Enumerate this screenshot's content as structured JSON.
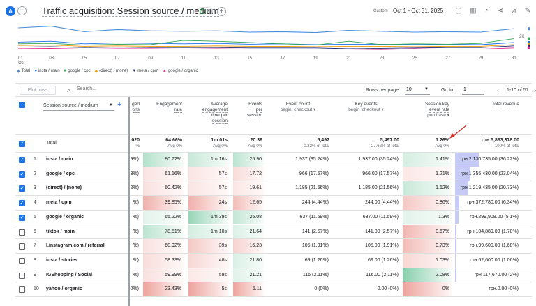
{
  "header": {
    "avatar": "A",
    "title": "Traffic acquisition: Session source / medium",
    "date_label": "Custom",
    "date_range": "Oct 1 - Oct 31, 2025"
  },
  "chart_data": {
    "type": "line",
    "x": [
      "01 Oct",
      "03",
      "05",
      "07",
      "09",
      "11",
      "13",
      "15",
      "17",
      "19",
      "21",
      "23",
      "25",
      "27",
      "29",
      "31"
    ],
    "x_tick_labels": [
      "01",
      "03",
      "05",
      "07",
      "09",
      "11",
      "13",
      "15",
      "17",
      "19",
      "21",
      "23",
      "25",
      "27",
      "29",
      "31"
    ],
    "x_first_sub": "Oct",
    "y_tick_label": "2K",
    "series": [
      {
        "name": "Total",
        "color": "#4a90d9",
        "values": [
          3000,
          3200,
          2550,
          2800,
          2650,
          2600,
          2650,
          2500,
          2550,
          2450,
          2700,
          2600,
          2500,
          2550,
          2500,
          2900
        ]
      },
      {
        "name": "insta / main",
        "color": "#1a73e8",
        "values": [
          1300,
          1400,
          1100,
          1200,
          1150,
          1100,
          1150,
          1050,
          1100,
          1000,
          1050,
          1050,
          1000,
          1050,
          1000,
          1250
        ]
      },
      {
        "name": "google / cpc",
        "color": "#34a853",
        "values": [
          1100,
          1150,
          950,
          1050,
          1000,
          1500,
          1400,
          1250,
          1100,
          950,
          1400,
          1000,
          1100,
          1050,
          1150,
          1700
        ]
      },
      {
        "name": "(direct) / (none)",
        "color": "#f29900",
        "values": [
          900,
          950,
          800,
          850,
          800,
          800,
          850,
          800,
          800,
          750,
          800,
          800,
          750,
          800,
          800,
          1000
        ]
      },
      {
        "name": "meta / cpm",
        "color": "#1e2a78",
        "values": [
          700,
          750,
          650,
          700,
          650,
          650,
          650,
          600,
          600,
          600,
          500,
          550,
          600,
          650,
          650,
          850
        ]
      },
      {
        "name": "google / organic",
        "color": "#e52592",
        "values": [
          500,
          550,
          450,
          500,
          500,
          450,
          500,
          450,
          450,
          450,
          450,
          400,
          500,
          450,
          450,
          600
        ]
      }
    ]
  },
  "toolbar": {
    "plot_rows": "Plot rows",
    "search_placeholder": "Search...",
    "rows_per_page_label": "Rows per page:",
    "rows_per_page": "10",
    "goto_label": "Go to:",
    "goto_value": "1",
    "page_info": "1-10 of 57"
  },
  "columns": {
    "dimension": "Session source / medium",
    "engaged_partial": "ged\nons",
    "engagement_rate": [
      "Engagement",
      "rate"
    ],
    "avg_time": [
      "Average",
      "engagement",
      "time per",
      "session"
    ],
    "events_per_session": [
      "Events",
      "per",
      "session"
    ],
    "event_count": "Event count",
    "event_count_sub": "begin_checkout",
    "key_events": "Key events",
    "key_events_sub": "begin_checkout",
    "key_rate": [
      "Session key",
      "event rate"
    ],
    "key_rate_sub": "purchase",
    "total_revenue": "Total revenue"
  },
  "totals": {
    "label": "Total",
    "engaged": "020",
    "engaged_sub": "%",
    "engagement_rate": "64.66%",
    "engagement_rate_sub": "Avg 0%",
    "avg_time": "1m 01s",
    "avg_time_sub": "Avg 0%",
    "events_per_session": "20.36",
    "events_per_session_sub": "Avg 0%",
    "event_count": "5,497",
    "event_count_sub": "0.22% of total",
    "key_events": "5,497.00",
    "key_events_sub": "27.62% of total",
    "key_rate": "1.26%",
    "key_rate_sub": "Avg 0%",
    "revenue": "грн.5,883,378.00",
    "revenue_sub": "100% of total"
  },
  "rows": [
    {
      "idx": "1",
      "name": "insta / main",
      "checked": true,
      "engaged": "9%)",
      "er": "80.72%",
      "er_v": 80.72,
      "time": "1m 16s",
      "time_v": 76,
      "eps": "25.90",
      "eps_v": 25.9,
      "ec": "1,937 (35.24%)",
      "ke": "1,937.00 (35.24%)",
      "kr": "1.41%",
      "kr_v": 1.41,
      "rev": "грн.2,130,735.00 (36.22%)",
      "rev_v": 36.22
    },
    {
      "idx": "2",
      "name": "google / cpc",
      "checked": true,
      "engaged": "3%)",
      "er": "61.16%",
      "er_v": 61.16,
      "time": "57s",
      "time_v": 57,
      "eps": "17.72",
      "eps_v": 17.72,
      "ec": "966 (17.57%)",
      "ke": "966.00 (17.57%)",
      "kr": "1.21%",
      "kr_v": 1.21,
      "rev": "грн.1,355,430.00 (23.04%)",
      "rev_v": 23.04
    },
    {
      "idx": "3",
      "name": "(direct) / (none)",
      "checked": true,
      "engaged": "2%)",
      "er": "60.42%",
      "er_v": 60.42,
      "time": "57s",
      "time_v": 57,
      "eps": "19.61",
      "eps_v": 19.61,
      "ec": "1,185 (21.56%)",
      "ke": "1,185.00 (21.56%)",
      "kr": "1.52%",
      "kr_v": 1.52,
      "rev": "грн.1,219,435.00 (20.73%)",
      "rev_v": 20.73
    },
    {
      "idx": "4",
      "name": "meta / cpm",
      "checked": true,
      "engaged": "%)",
      "er": "39.85%",
      "er_v": 39.85,
      "time": "24s",
      "time_v": 24,
      "eps": "12.65",
      "eps_v": 12.65,
      "ec": "244 (4.44%)",
      "ke": "244.00 (4.44%)",
      "kr": "0.86%",
      "kr_v": 0.86,
      "rev": "грн.372,780.00 (6.34%)",
      "rev_v": 6.34
    },
    {
      "idx": "5",
      "name": "google / organic",
      "checked": true,
      "engaged": "%)",
      "er": "65.22%",
      "er_v": 65.22,
      "time": "1m 39s",
      "time_v": 99,
      "eps": "25.08",
      "eps_v": 25.08,
      "ec": "637 (11.59%)",
      "ke": "637.00 (11.59%)",
      "kr": "1.3%",
      "kr_v": 1.3,
      "rev": "грн.299,909.00 (5.1%)",
      "rev_v": 5.1
    },
    {
      "idx": "6",
      "name": "tiktok / main",
      "checked": false,
      "engaged": "%)",
      "er": "78.51%",
      "er_v": 78.51,
      "time": "1m 10s",
      "time_v": 70,
      "eps": "21.64",
      "eps_v": 21.64,
      "ec": "141 (2.57%)",
      "ke": "141.00 (2.57%)",
      "kr": "0.67%",
      "kr_v": 0.67,
      "rev": "грн.104,889.00 (1.78%)",
      "rev_v": 1.78
    },
    {
      "idx": "7",
      "name": "l.instagram.com / referral",
      "checked": false,
      "engaged": "%)",
      "er": "60.92%",
      "er_v": 60.92,
      "time": "39s",
      "time_v": 39,
      "eps": "16.23",
      "eps_v": 16.23,
      "ec": "105 (1.91%)",
      "ke": "105.00 (1.91%)",
      "kr": "0.73%",
      "kr_v": 0.73,
      "rev": "грн.99,600.00 (1.68%)",
      "rev_v": 1.68
    },
    {
      "idx": "8",
      "name": "insta / stories",
      "checked": false,
      "engaged": "%)",
      "er": "58.33%",
      "er_v": 58.33,
      "time": "48s",
      "time_v": 48,
      "eps": "21.80",
      "eps_v": 21.8,
      "ec": "69 (1.26%)",
      "ke": "69.00 (1.26%)",
      "kr": "1.03%",
      "kr_v": 1.03,
      "rev": "грн.62,600.00 (1.06%)",
      "rev_v": 1.06
    },
    {
      "idx": "9",
      "name": "IGShopping / Social",
      "checked": false,
      "engaged": "%)",
      "er": "59.99%",
      "er_v": 59.99,
      "time": "59s",
      "time_v": 59,
      "eps": "21.21",
      "eps_v": 21.21,
      "ec": "116 (2.11%)",
      "ke": "116.00 (2.11%)",
      "kr": "2.08%",
      "kr_v": 2.08,
      "rev": "грн.117,670.00 (2%)",
      "rev_v": 2,
      "rev_text": "грн.117,670.00 (2%)"
    },
    {
      "idx": "10",
      "name": "yahoo / organic",
      "checked": false,
      "engaged": "0%)",
      "er": "23.43%",
      "er_v": 23.43,
      "time": "5s",
      "time_v": 5,
      "eps": "5.11",
      "eps_v": 5.11,
      "ec": "0 (0%)",
      "ke": "0.00 (0%)",
      "kr": "0%",
      "kr_v": 0,
      "rev": "грн.0.00 (0%)",
      "rev_v": 0
    }
  ],
  "colors": {
    "positive": "#57bb8a",
    "negative": "#e67c73",
    "revenue_bar": "#c6cbf5",
    "accent": "#1a73e8"
  }
}
